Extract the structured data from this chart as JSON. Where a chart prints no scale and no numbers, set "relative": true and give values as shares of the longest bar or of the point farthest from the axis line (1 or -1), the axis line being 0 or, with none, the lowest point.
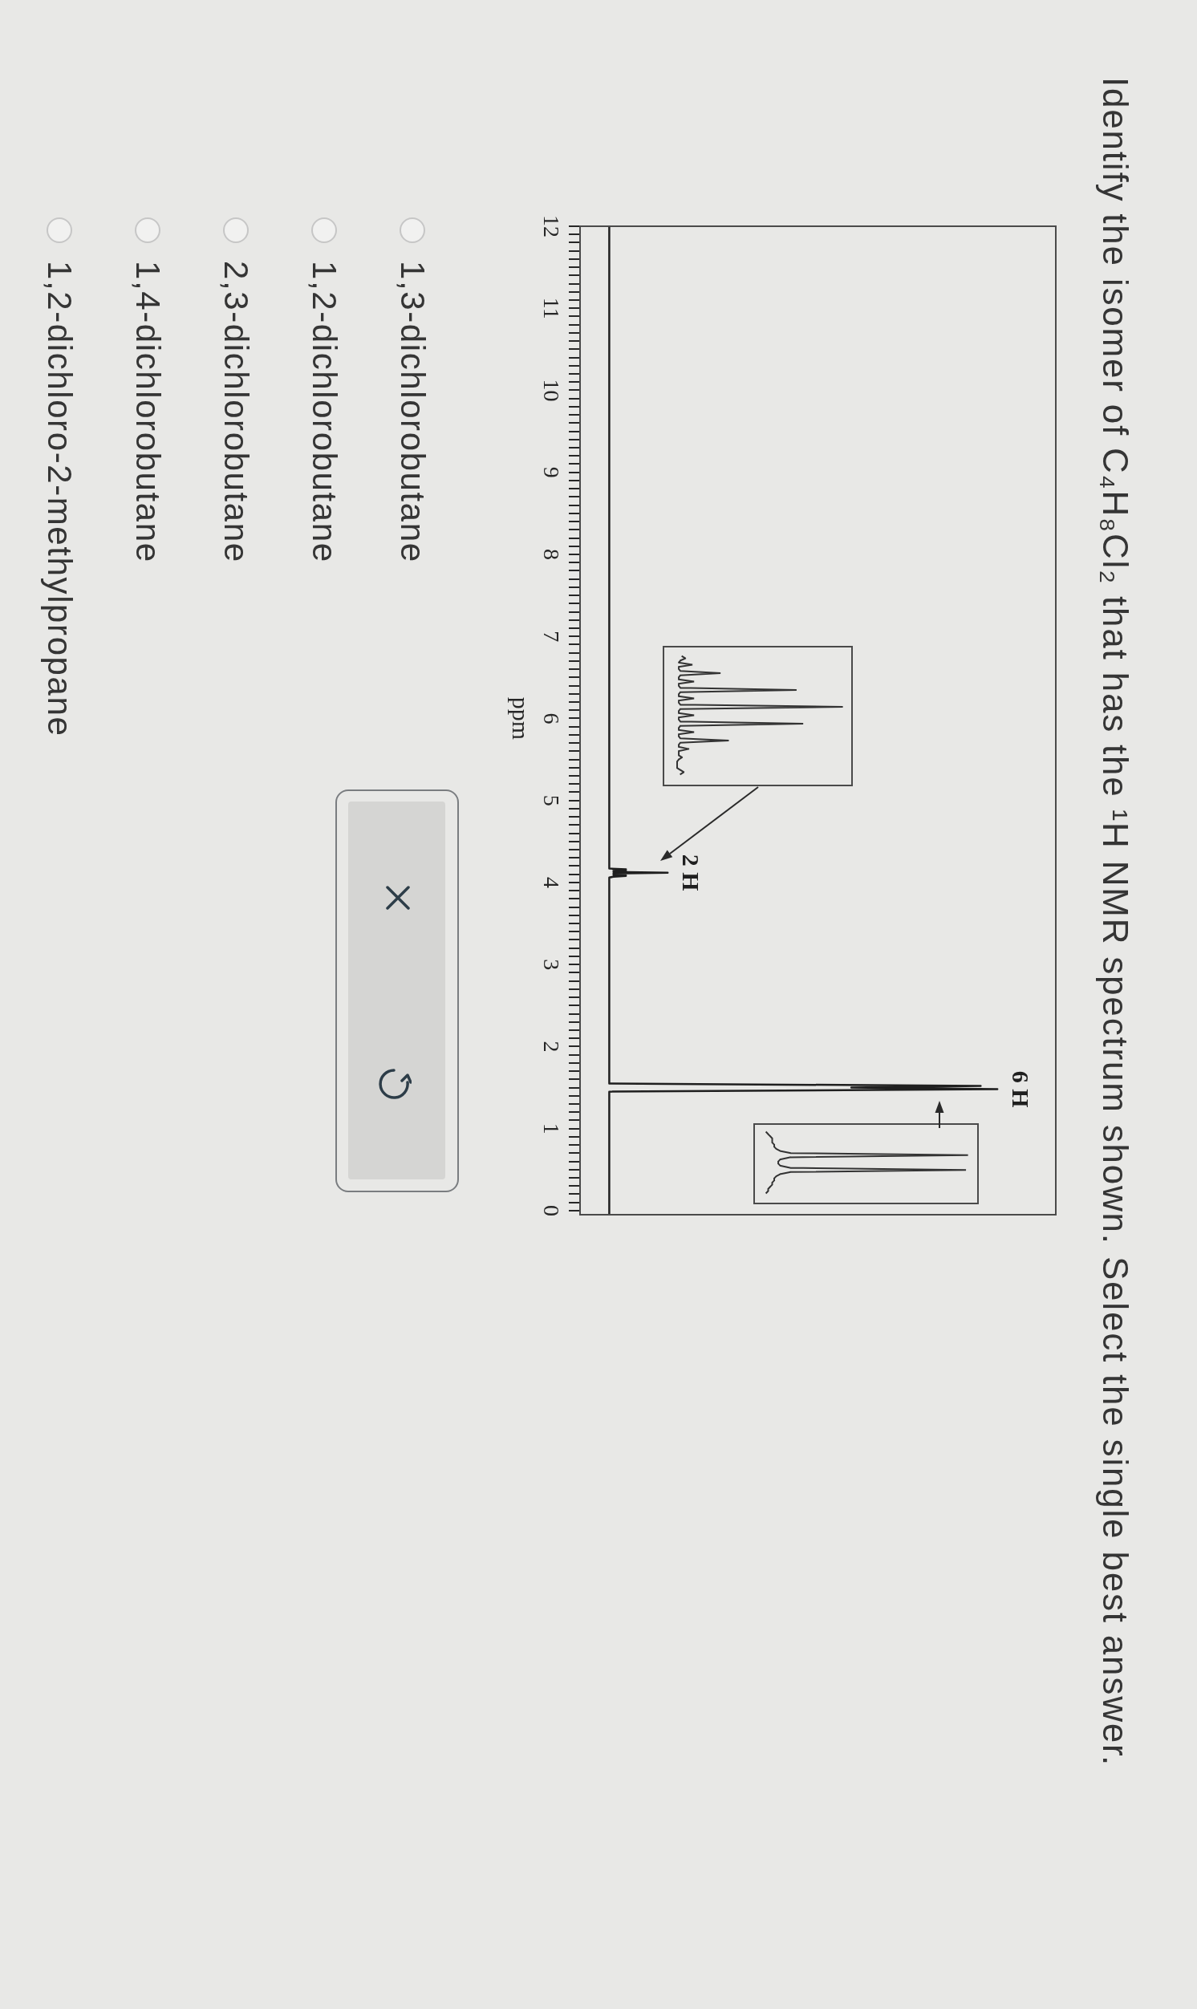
{
  "chart_data": [
    {
      "type": "line",
      "orientation": "horizontal",
      "title": "Identify the isomer of C₄H₈Cl₂ that has the ¹H NMR spectrum shown. Select the single best answer.",
      "ylabel": "ppm",
      "relative": true,
      "x": [
        12,
        4.17,
        4.16,
        4.15,
        4.14,
        4.13,
        4.12,
        4.11,
        4.1,
        4.09,
        4.08,
        4.07,
        4.06,
        1.55,
        1.52,
        1.5,
        1.48,
        1.45,
        -0.05
      ],
      "series": [
        {
          "color": "#1f1f1f",
          "values": [
            0.07,
            0.07,
            0.11,
            0.08,
            0.11,
            0.08,
            0.21,
            0.08,
            0.11,
            0.08,
            0.11,
            0.08,
            0.07,
            0.07,
            0.96,
            0.65,
            1,
            0.07,
            0.07
          ]
        }
      ],
      "ylim": [
        -0.05,
        12
      ],
      "yticks": [
        0,
        {
          "value": 0.1,
          "label": null
        },
        {
          "value": 0.2,
          "label": null
        },
        {
          "value": 0.3,
          "label": null
        },
        {
          "value": 0.4,
          "label": null
        },
        {
          "value": 0.5,
          "label": null
        },
        {
          "value": 0.6,
          "label": null
        },
        {
          "value": 0.7,
          "label": null
        },
        {
          "value": 0.8,
          "label": null
        },
        {
          "value": 0.9,
          "label": null
        },
        1,
        {
          "value": 1.1,
          "label": null
        },
        {
          "value": 1.2,
          "label": null
        },
        {
          "value": 1.3,
          "label": null
        },
        {
          "value": 1.4,
          "label": null
        },
        {
          "value": 1.5,
          "label": null
        },
        {
          "value": 1.6,
          "label": null
        },
        {
          "value": 1.7,
          "label": null
        },
        {
          "value": 1.8,
          "label": null
        },
        {
          "value": 1.9,
          "label": null
        },
        2,
        {
          "value": 2.1,
          "label": null
        },
        {
          "value": 2.2,
          "label": null
        },
        {
          "value": 2.3,
          "label": null
        },
        {
          "value": 2.4,
          "label": null
        },
        {
          "value": 2.5,
          "label": null
        },
        {
          "value": 2.6,
          "label": null
        },
        {
          "value": 2.7,
          "label": null
        },
        {
          "value": 2.8,
          "label": null
        },
        {
          "value": 2.9,
          "label": null
        },
        3,
        {
          "value": 3.1,
          "label": null
        },
        {
          "value": 3.2,
          "label": null
        },
        {
          "value": 3.3,
          "label": null
        },
        {
          "value": 3.4,
          "label": null
        },
        {
          "value": 3.5,
          "label": null
        },
        {
          "value": 3.6,
          "label": null
        },
        {
          "value": 3.7,
          "label": null
        },
        {
          "value": 3.8,
          "label": null
        },
        {
          "value": 3.9,
          "label": null
        },
        4,
        {
          "value": 4.1,
          "label": null
        },
        {
          "value": 4.2,
          "label": null
        },
        {
          "value": 4.3,
          "label": null
        },
        {
          "value": 4.4,
          "label": null
        },
        {
          "value": 4.5,
          "label": null
        },
        {
          "value": 4.6,
          "label": null
        },
        {
          "value": 4.7,
          "label": null
        },
        {
          "value": 4.8,
          "label": null
        },
        {
          "value": 4.9,
          "label": null
        },
        5,
        {
          "value": 5.1,
          "label": null
        },
        {
          "value": 5.2,
          "label": null
        },
        {
          "value": 5.3,
          "label": null
        },
        {
          "value": 5.4,
          "label": null
        },
        {
          "value": 5.5,
          "label": null
        },
        {
          "value": 5.6,
          "label": null
        },
        {
          "value": 5.7,
          "label": null
        },
        {
          "value": 5.8,
          "label": null
        },
        {
          "value": 5.9,
          "label": null
        },
        6,
        {
          "value": 6.1,
          "label": null
        },
        {
          "value": 6.2,
          "label": null
        },
        {
          "value": 6.3,
          "label": null
        },
        {
          "value": 6.4,
          "label": null
        },
        {
          "value": 6.5,
          "label": null
        },
        {
          "value": 6.6,
          "label": null
        },
        {
          "value": 6.7,
          "label": null
        },
        {
          "value": 6.8,
          "label": null
        },
        {
          "value": 6.9,
          "label": null
        },
        7,
        {
          "value": 7.1,
          "label": null
        },
        {
          "value": 7.2,
          "label": null
        },
        {
          "value": 7.3,
          "label": null
        },
        {
          "value": 7.4,
          "label": null
        },
        {
          "value": 7.5,
          "label": null
        },
        {
          "value": 7.6,
          "label": null
        },
        {
          "value": 7.7,
          "label": null
        },
        {
          "value": 7.8,
          "label": null
        },
        {
          "value": 7.9,
          "label": null
        },
        8,
        {
          "value": 8.1,
          "label": null
        },
        {
          "value": 8.2,
          "label": null
        },
        {
          "value": 8.3,
          "label": null
        },
        {
          "value": 8.4,
          "label": null
        },
        {
          "value": 8.5,
          "label": null
        },
        {
          "value": 8.6,
          "label": null
        },
        {
          "value": 8.7,
          "label": null
        },
        {
          "value": 8.8,
          "label": null
        },
        {
          "value": 8.9,
          "label": null
        },
        9,
        {
          "value": 9.1,
          "label": null
        },
        {
          "value": 9.2,
          "label": null
        },
        {
          "value": 9.3,
          "label": null
        },
        {
          "value": 9.4,
          "label": null
        },
        {
          "value": 9.5,
          "label": null
        },
        {
          "value": 9.6,
          "label": null
        },
        {
          "value": 9.7,
          "label": null
        },
        {
          "value": 9.8,
          "label": null
        },
        {
          "value": 9.9,
          "label": null
        },
        10,
        {
          "value": 10.1,
          "label": null
        },
        {
          "value": 10.2,
          "label": null
        },
        {
          "value": 10.3,
          "label": null
        },
        {
          "value": 10.4,
          "label": null
        },
        {
          "value": 10.5,
          "label": null
        },
        {
          "value": 10.6,
          "label": null
        },
        {
          "value": 10.7,
          "label": null
        },
        {
          "value": 10.8,
          "label": null
        },
        {
          "value": 10.9,
          "label": null
        },
        11,
        {
          "value": 11.1,
          "label": null
        },
        {
          "value": 11.2,
          "label": null
        },
        {
          "value": 11.3,
          "label": null
        },
        {
          "value": 11.4,
          "label": null
        },
        {
          "value": 11.5,
          "label": null
        },
        {
          "value": 11.6,
          "label": null
        },
        {
          "value": 11.7,
          "label": null
        },
        {
          "value": 11.8,
          "label": null
        },
        {
          "value": 11.9,
          "label": null
        },
        12
      ],
      "annotations": [
        {
          "text": "2 H",
          "x": 0.21,
          "y": 4.12
        },
        {
          "text": "6 H",
          "x": 1,
          "y": 1.48
        },
        "1,3-dichlorobutane",
        "1,2-dichlorobutane",
        "2,3-dichlorobutane",
        "1,4-dichlorobutane",
        "1,2-dichloro-2-methylpropane"
      ]
    }
  ]
}
